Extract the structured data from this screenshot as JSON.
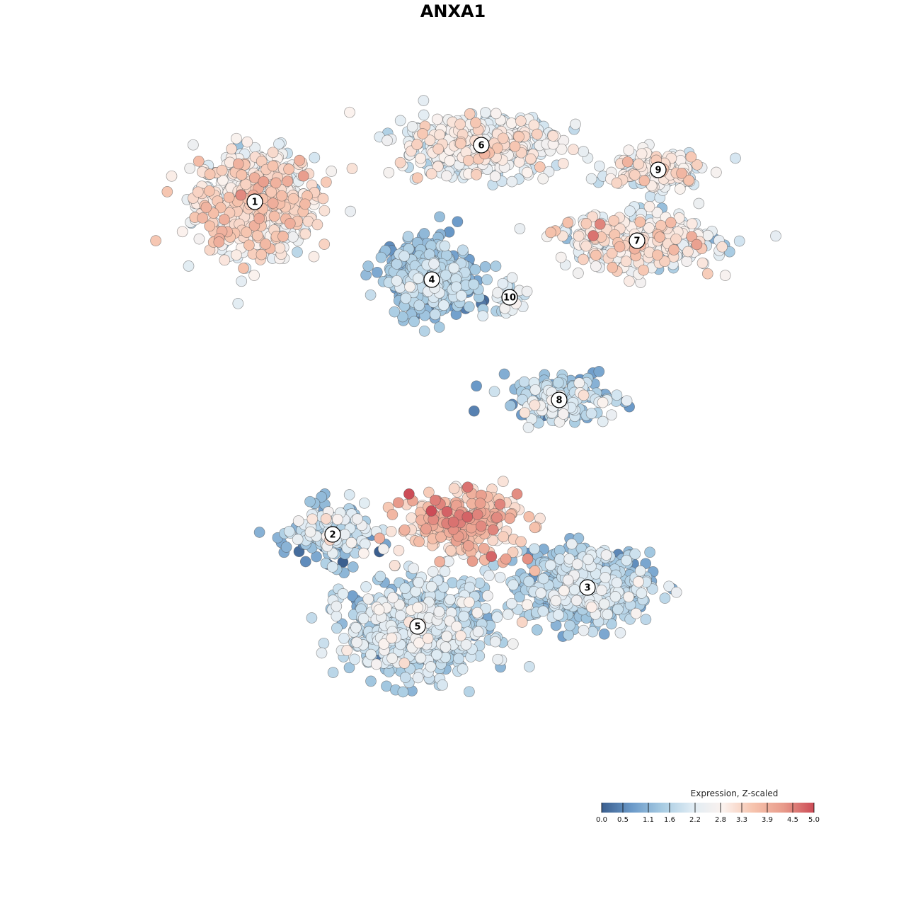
{
  "title": "ANXA1",
  "colorbar": {
    "title": "Expression, Z-scaled",
    "min": 0.0,
    "max": 5.0,
    "ticks": [
      "0.0",
      "0.5",
      "1.1",
      "1.6",
      "2.2",
      "2.8",
      "3.3",
      "3.9",
      "4.5",
      "5.0"
    ],
    "colors": [
      "#3b5f8f",
      "#6b9ac9",
      "#a7cbe2",
      "#e0ecf4",
      "#fbf2ee",
      "#f6c3ad",
      "#e89b8b",
      "#cc4c57"
    ]
  },
  "chart_data": {
    "type": "scatter",
    "title": "ANXA1",
    "xlabel": "",
    "ylabel": "",
    "color_scale": "Expression, Z-scaled",
    "clusters": [
      {
        "label": "1",
        "x": -5.6,
        "y": 6.3,
        "spread_x": 1.5,
        "spread_y": 1.3,
        "n": 700,
        "mean_expr": 2.7,
        "expr_sd": 0.55
      },
      {
        "label": "2",
        "x": -3.4,
        "y": -3.1,
        "spread_x": 1.0,
        "spread_y": 0.7,
        "n": 200,
        "mean_expr": 1.4,
        "expr_sd": 0.7
      },
      {
        "label": "3",
        "x": 3.8,
        "y": -4.6,
        "spread_x": 1.6,
        "spread_y": 0.9,
        "n": 550,
        "mean_expr": 1.5,
        "expr_sd": 0.5
      },
      {
        "label": "4",
        "x": -0.6,
        "y": 4.1,
        "spread_x": 1.1,
        "spread_y": 0.9,
        "n": 480,
        "mean_expr": 1.2,
        "expr_sd": 0.45
      },
      {
        "label": "5",
        "x": -1.0,
        "y": -5.7,
        "spread_x": 1.8,
        "spread_y": 1.2,
        "n": 650,
        "mean_expr": 1.7,
        "expr_sd": 0.5
      },
      {
        "label": "6",
        "x": 0.8,
        "y": 7.9,
        "spread_x": 2.0,
        "spread_y": 0.8,
        "n": 450,
        "mean_expr": 2.4,
        "expr_sd": 0.5
      },
      {
        "label": "7",
        "x": 5.2,
        "y": 5.2,
        "spread_x": 2.0,
        "spread_y": 0.7,
        "n": 350,
        "mean_expr": 2.5,
        "expr_sd": 0.6
      },
      {
        "label": "8",
        "x": 3.0,
        "y": 0.7,
        "spread_x": 1.4,
        "spread_y": 0.6,
        "n": 180,
        "mean_expr": 1.6,
        "expr_sd": 0.6
      },
      {
        "label": "9",
        "x": 5.8,
        "y": 7.2,
        "spread_x": 1.2,
        "spread_y": 0.5,
        "n": 180,
        "mean_expr": 2.5,
        "expr_sd": 0.5
      },
      {
        "label": "10",
        "x": 1.6,
        "y": 3.6,
        "spread_x": 0.3,
        "spread_y": 0.5,
        "n": 40,
        "mean_expr": 2.0,
        "expr_sd": 0.3
      },
      {
        "label": "",
        "x": 0.2,
        "y": -2.8,
        "spread_x": 1.5,
        "spread_y": 0.8,
        "n": 300,
        "mean_expr": 3.5,
        "expr_sd": 0.55
      }
    ],
    "xlim": [
      -10,
      10
    ],
    "ylim": [
      -10,
      10
    ],
    "grid": false,
    "legend": "bottom-right"
  }
}
